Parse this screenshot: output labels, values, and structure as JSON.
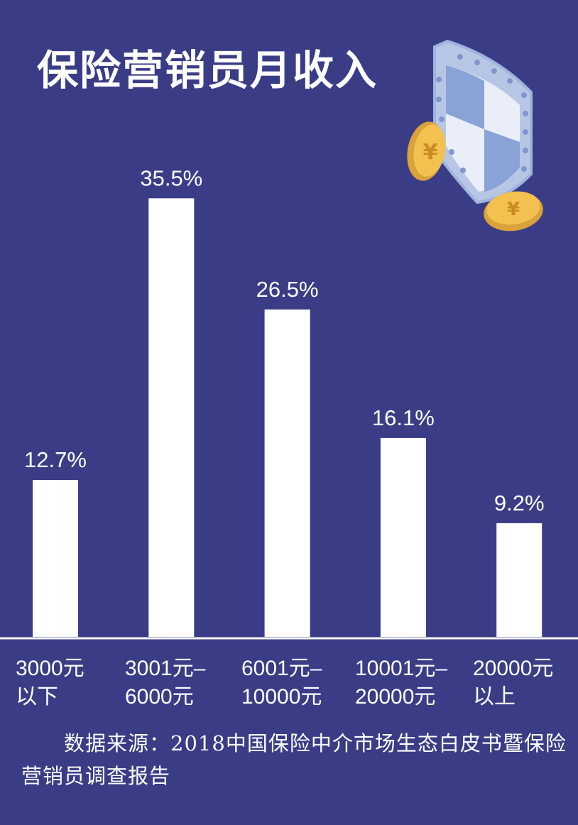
{
  "title": "保险营销员月收入",
  "colors": {
    "background": "#3a3d86",
    "bar": "#ffffff",
    "text": "#ffffff",
    "shield_blue": "#8aa3d6",
    "shield_light": "#e6ecf7",
    "coin": "#f2c14f"
  },
  "icons": [
    "shield-icon",
    "yuan-coin-icon",
    "yuan-coin-icon"
  ],
  "source": {
    "prefix": "数据来源：",
    "text": "2018中国保险中介市场生态白皮书暨保险营销员调查报告"
  },
  "chart_data": {
    "type": "bar",
    "title": "保险营销员月收入",
    "categories": [
      "3000元\n以下",
      "3001元–\n6000元",
      "6001元–\n10000元",
      "10001元–\n20000元",
      "20000元\n以上"
    ],
    "values": [
      12.7,
      35.5,
      26.5,
      16.1,
      9.2
    ],
    "value_labels": [
      "12.7%",
      "35.5%",
      "26.5%",
      "16.1%",
      "9.2%"
    ],
    "ylim": [
      0,
      40
    ],
    "grid": false,
    "legend": "none"
  }
}
